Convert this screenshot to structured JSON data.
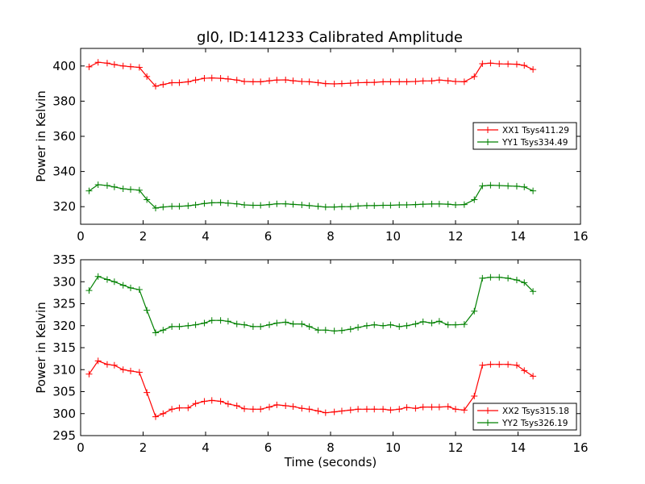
{
  "title": "gl0, ID:141233 Calibrated Amplitude",
  "chart_data": [
    {
      "type": "line",
      "title": "gl0, ID:141233 Calibrated Amplitude",
      "xlabel": "",
      "ylabel": "Power in Kelvin",
      "xlim": [
        0,
        16
      ],
      "ylim": [
        310,
        410
      ],
      "xticks": [
        0,
        2,
        4,
        6,
        8,
        10,
        12,
        14,
        16
      ],
      "yticks": [
        320,
        340,
        360,
        380,
        400
      ],
      "grid": false,
      "legend": "center-right",
      "series": [
        {
          "name": "XX1 Tsys411.29",
          "color": "#ff0000",
          "x": [
            0.27,
            0.56,
            0.85,
            1.08,
            1.36,
            1.6,
            1.88,
            2.12,
            2.4,
            2.64,
            2.92,
            3.16,
            3.44,
            3.68,
            3.96,
            4.2,
            4.48,
            4.72,
            5.0,
            5.24,
            5.52,
            5.76,
            6.04,
            6.28,
            6.56,
            6.8,
            7.08,
            7.32,
            7.6,
            7.84,
            8.12,
            8.36,
            8.64,
            8.88,
            9.16,
            9.4,
            9.68,
            9.92,
            10.2,
            10.44,
            10.72,
            10.96,
            11.24,
            11.48,
            11.76,
            12.0,
            12.28,
            12.6,
            12.86,
            13.12,
            13.4,
            13.68,
            13.96,
            14.2,
            14.48
          ],
          "values": [
            399.5,
            402.1,
            401.6,
            400.8,
            400.0,
            399.6,
            399.2,
            394.0,
            388.5,
            389.5,
            390.5,
            390.5,
            391.0,
            392.0,
            393.0,
            393.2,
            393.0,
            392.6,
            392.0,
            391.2,
            391.0,
            391.0,
            391.6,
            392.0,
            392.1,
            391.6,
            391.2,
            391.0,
            390.5,
            390.0,
            389.8,
            390.0,
            390.2,
            390.5,
            390.6,
            390.7,
            391.0,
            391.0,
            391.0,
            391.0,
            391.2,
            391.5,
            391.5,
            392.0,
            391.6,
            391.2,
            391.0,
            394.0,
            401.3,
            401.6,
            401.2,
            401.1,
            401.0,
            400.3,
            398.0
          ]
        },
        {
          "name": "YY1 Tsys334.49",
          "color": "#008000",
          "x": [
            0.27,
            0.56,
            0.85,
            1.08,
            1.36,
            1.6,
            1.88,
            2.12,
            2.4,
            2.64,
            2.92,
            3.16,
            3.44,
            3.68,
            3.96,
            4.2,
            4.48,
            4.72,
            5.0,
            5.24,
            5.52,
            5.76,
            6.04,
            6.28,
            6.56,
            6.8,
            7.08,
            7.32,
            7.6,
            7.84,
            8.12,
            8.36,
            8.64,
            8.88,
            9.16,
            9.4,
            9.68,
            9.92,
            10.2,
            10.44,
            10.72,
            10.96,
            11.24,
            11.48,
            11.76,
            12.0,
            12.28,
            12.6,
            12.86,
            13.12,
            13.4,
            13.68,
            13.96,
            14.2,
            14.48
          ],
          "values": [
            329.0,
            332.5,
            332.0,
            331.2,
            330.2,
            329.8,
            329.4,
            324.0,
            319.2,
            319.8,
            320.2,
            320.2,
            320.5,
            321.0,
            321.8,
            322.2,
            322.3,
            322.0,
            321.6,
            321.0,
            320.8,
            320.8,
            321.2,
            321.6,
            321.6,
            321.3,
            321.0,
            320.6,
            320.2,
            319.8,
            319.8,
            320.0,
            320.0,
            320.4,
            320.6,
            320.6,
            320.8,
            320.8,
            321.0,
            321.0,
            321.2,
            321.4,
            321.5,
            321.5,
            321.4,
            321.0,
            321.2,
            324.0,
            331.8,
            332.2,
            332.0,
            331.8,
            331.6,
            331.2,
            329.0
          ]
        }
      ]
    },
    {
      "type": "line",
      "title": "",
      "xlabel": "Time (seconds)",
      "ylabel": "Power in Kelvin",
      "xlim": [
        0,
        16
      ],
      "ylim": [
        295,
        335
      ],
      "xticks": [
        0,
        2,
        4,
        6,
        8,
        10,
        12,
        14,
        16
      ],
      "yticks": [
        295,
        300,
        305,
        310,
        315,
        320,
        325,
        330,
        335
      ],
      "grid": false,
      "legend": "lower-right",
      "series": [
        {
          "name": "XX2 Tsys315.18",
          "color": "#ff0000",
          "x": [
            0.27,
            0.56,
            0.85,
            1.08,
            1.36,
            1.6,
            1.88,
            2.12,
            2.4,
            2.64,
            2.92,
            3.16,
            3.44,
            3.68,
            3.96,
            4.2,
            4.48,
            4.72,
            5.0,
            5.24,
            5.52,
            5.76,
            6.04,
            6.28,
            6.56,
            6.8,
            7.08,
            7.32,
            7.6,
            7.84,
            8.12,
            8.36,
            8.64,
            8.88,
            9.16,
            9.4,
            9.68,
            9.92,
            10.2,
            10.44,
            10.72,
            10.96,
            11.24,
            11.48,
            11.76,
            12.0,
            12.28,
            12.6,
            12.86,
            13.12,
            13.4,
            13.68,
            13.96,
            14.2,
            14.48
          ],
          "values": [
            309.0,
            312.0,
            311.2,
            311.0,
            310.0,
            309.7,
            309.4,
            304.8,
            299.3,
            300.0,
            301.0,
            301.3,
            301.3,
            302.3,
            302.8,
            303.0,
            302.8,
            302.2,
            301.8,
            301.1,
            301.0,
            301.0,
            301.5,
            302.0,
            301.8,
            301.6,
            301.2,
            301.0,
            300.6,
            300.2,
            300.4,
            300.6,
            300.8,
            301.0,
            301.0,
            301.0,
            301.0,
            300.8,
            301.0,
            301.4,
            301.2,
            301.5,
            301.5,
            301.5,
            301.6,
            301.0,
            300.8,
            304.0,
            311.0,
            311.2,
            311.2,
            311.2,
            311.0,
            309.8,
            308.5
          ]
        },
        {
          "name": "YY2 Tsys326.19",
          "color": "#008000",
          "x": [
            0.27,
            0.56,
            0.85,
            1.08,
            1.36,
            1.6,
            1.88,
            2.12,
            2.4,
            2.64,
            2.92,
            3.16,
            3.44,
            3.68,
            3.96,
            4.2,
            4.48,
            4.72,
            5.0,
            5.24,
            5.52,
            5.76,
            6.04,
            6.28,
            6.56,
            6.8,
            7.08,
            7.32,
            7.6,
            7.84,
            8.12,
            8.36,
            8.64,
            8.88,
            9.16,
            9.4,
            9.68,
            9.92,
            10.2,
            10.44,
            10.72,
            10.96,
            11.24,
            11.48,
            11.76,
            12.0,
            12.28,
            12.6,
            12.86,
            13.12,
            13.4,
            13.68,
            13.96,
            14.2,
            14.48
          ],
          "values": [
            328.0,
            331.2,
            330.5,
            330.0,
            329.2,
            328.6,
            328.2,
            323.5,
            318.4,
            319.0,
            319.8,
            319.8,
            320.0,
            320.2,
            320.6,
            321.2,
            321.2,
            321.0,
            320.4,
            320.2,
            319.8,
            319.8,
            320.2,
            320.6,
            320.8,
            320.4,
            320.4,
            319.8,
            319.0,
            319.0,
            318.8,
            318.9,
            319.2,
            319.6,
            320.0,
            320.2,
            320.0,
            320.2,
            319.8,
            320.0,
            320.4,
            320.9,
            320.6,
            321.0,
            320.2,
            320.2,
            320.3,
            323.3,
            330.8,
            331.0,
            331.0,
            330.8,
            330.4,
            329.8,
            327.8
          ]
        }
      ]
    }
  ]
}
